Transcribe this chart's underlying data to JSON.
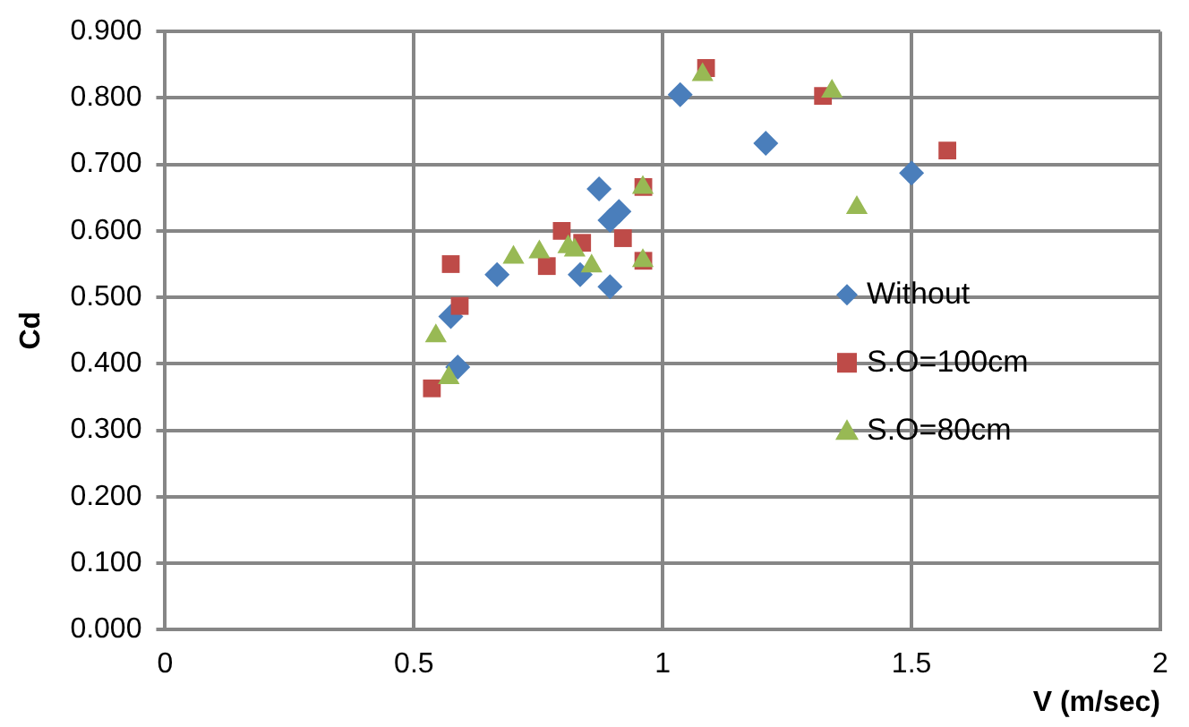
{
  "chart_data": {
    "type": "scatter",
    "xlabel": "V (m/sec)",
    "ylabel": "Cd",
    "xlim": [
      0,
      2
    ],
    "xticks": [
      0,
      0.5,
      1,
      1.5,
      2
    ],
    "ylim": [
      0,
      0.9
    ],
    "yticks": [
      {
        "value": 0,
        "label": "0.000"
      },
      {
        "value": 0.1,
        "label": "0.100"
      },
      {
        "value": 0.2,
        "label": "0.200"
      },
      {
        "value": 0.3,
        "label": "0.300"
      },
      {
        "value": 0.4,
        "label": "0.400"
      },
      {
        "value": 0.5,
        "label": "0.500"
      },
      {
        "value": 0.6,
        "label": "0.600"
      },
      {
        "value": 0.7,
        "label": "0.700"
      },
      {
        "value": 0.8,
        "label": "0.800"
      },
      {
        "value": 0.9,
        "label": "0.900"
      }
    ],
    "grid": true,
    "legend": "right",
    "series": [
      {
        "name": "Without",
        "color": "#4a7ebb",
        "marker": "diamond",
        "x": [
          1.035,
          1.207,
          1.5,
          0.872,
          0.912,
          0.894,
          0.667,
          0.834,
          0.894,
          0.574,
          0.588
        ],
        "values": [
          0.805,
          0.732,
          0.687,
          0.663,
          0.629,
          0.616,
          0.534,
          0.534,
          0.516,
          0.471,
          0.395
        ]
      },
      {
        "name": "S.O=100cm",
        "color": "#be4b48",
        "marker": "square",
        "x": [
          1.087,
          1.322,
          1.572,
          0.961,
          0.797,
          0.838,
          0.92,
          0.767,
          0.574,
          0.961,
          0.592,
          0.536
        ],
        "values": [
          0.845,
          0.803,
          0.721,
          0.666,
          0.6,
          0.582,
          0.589,
          0.547,
          0.55,
          0.555,
          0.487,
          0.363
        ]
      },
      {
        "name": "S.O=80cm",
        "color": "#98b954",
        "marker": "triangle",
        "x": [
          1.08,
          1.34,
          1.39,
          0.96,
          0.96,
          0.7,
          0.752,
          0.81,
          0.823,
          0.857,
          0.544,
          0.57
        ],
        "values": [
          0.835,
          0.81,
          0.635,
          0.665,
          0.555,
          0.56,
          0.568,
          0.576,
          0.571,
          0.547,
          0.442,
          0.379
        ]
      }
    ]
  }
}
